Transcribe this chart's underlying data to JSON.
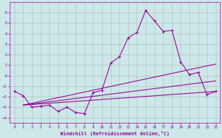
{
  "xlabel": "Windchill (Refroidissement éolien,°C)",
  "background_color": "#cce8e8",
  "grid_color": "#aaaaaa",
  "line_color": "#990099",
  "x_values": [
    0,
    1,
    2,
    3,
    4,
    5,
    6,
    7,
    8,
    9,
    10,
    11,
    12,
    13,
    14,
    15,
    16,
    17,
    18,
    19,
    20,
    21,
    22,
    23
  ],
  "main_line": [
    -1.5,
    -1.9,
    -3.0,
    -2.9,
    -2.8,
    -3.4,
    -3.0,
    -3.5,
    -3.6,
    -1.6,
    -1.4,
    1.2,
    1.8,
    3.6,
    4.1,
    6.2,
    5.2,
    4.2,
    4.3,
    1.3,
    0.1,
    0.3,
    -1.8,
    -1.5
  ],
  "trend1_x": [
    1,
    23
  ],
  "trend1_y": [
    -2.8,
    1.1
  ],
  "trend2_x": [
    1,
    23
  ],
  "trend2_y": [
    -2.8,
    -0.5
  ],
  "trend3_x": [
    1,
    23
  ],
  "trend3_y": [
    -2.8,
    -1.5
  ],
  "ylim": [
    -4.5,
    7.0
  ],
  "xlim": [
    -0.5,
    23.5
  ],
  "yticks": [
    -4,
    -3,
    -2,
    -1,
    0,
    1,
    2,
    3,
    4,
    5,
    6
  ],
  "xticks": [
    0,
    1,
    2,
    3,
    4,
    5,
    6,
    7,
    8,
    9,
    10,
    11,
    12,
    13,
    14,
    15,
    16,
    17,
    18,
    19,
    20,
    21,
    22,
    23
  ]
}
